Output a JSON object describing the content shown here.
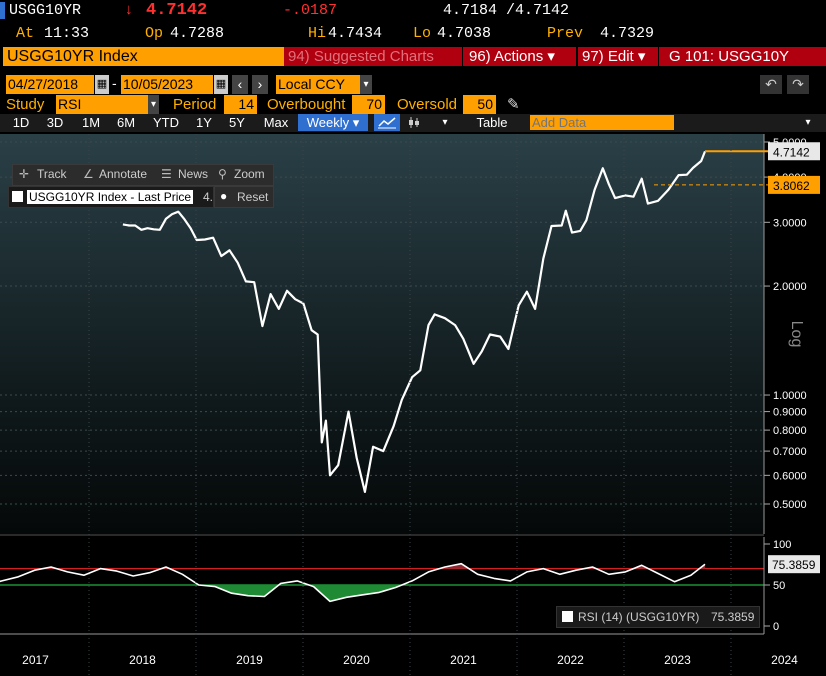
{
  "quote": {
    "ticker": "USGG10YR",
    "arrow": "↓",
    "last": "4.7142",
    "change": "-.0187",
    "bid_ask": "4.7184 /4.7142",
    "at_label": "At",
    "at_time": "11:33",
    "op_label": "Op",
    "open": "4.7288",
    "hi_label": "Hi",
    "high": "4.7434",
    "lo_label": "Lo",
    "low": "4.7038",
    "prev_label": "Prev",
    "prev": "4.7329"
  },
  "toolbar": {
    "security": "USGG10YR Index",
    "suggested": "94) Suggested Charts",
    "actions": "96) Actions ▾",
    "edit": "97) Edit ▾",
    "function": "G 101: USGG10Y"
  },
  "dates": {
    "start": "04/27/2018",
    "end": "10/05/2023",
    "currency": "Local CCY",
    "sep": "-"
  },
  "study": {
    "label": "Study",
    "name": "RSI",
    "period_label": "Period",
    "period": "14",
    "overbought_label": "Overbought",
    "overbought": "70",
    "oversold_label": "Oversold",
    "oversold": "50"
  },
  "tabs": [
    "1D",
    "3D",
    "1M",
    "6M",
    "YTD",
    "1Y",
    "5Y",
    "Max"
  ],
  "frequency": "Weekly ▾",
  "table_label": "Table",
  "add_data_placeholder": "Add Data",
  "chart_tools": {
    "track": "Track",
    "annotate": "Annotate",
    "news": "News",
    "zoom": "Zoom",
    "reset": "Reset",
    "legend": "USGG10YR Index - Last Price",
    "legend_value": "4."
  },
  "accent_colors": {
    "orange": "#ff9f00",
    "red": "#b0000f",
    "selected_tab": "#2f6fd0",
    "rsi_over": "#8a2a35",
    "rsi_under": "#1e8a33"
  },
  "chart_data": [
    {
      "type": "line",
      "scale": "log",
      "x_labels": [
        "2017",
        "2018",
        "2019",
        "2020",
        "2021",
        "2022",
        "2023",
        "2024"
      ],
      "y_ticks": [
        0.5,
        0.6,
        0.7,
        0.8,
        0.9,
        1.0,
        2.0,
        3.0,
        4.0,
        5.0
      ],
      "y_tick_labels": [
        "0.5000",
        "0.6000",
        "0.7000",
        "0.8000",
        "0.9000",
        "1.0000",
        "2.0000",
        "3.0000",
        "4.0000",
        "5.0000"
      ],
      "axis_label": "Log",
      "last_value": "4.7142",
      "ref_value": "3.8062",
      "series": [
        {
          "x": [
            "2018-04-27",
            "2018-05-18",
            "2018-06-08",
            "2018-06-29",
            "2018-07-20",
            "2018-08-10",
            "2018-08-31",
            "2018-09-21",
            "2018-10-12",
            "2018-11-02",
            "2018-11-23",
            "2018-12-14",
            "2019-01-04",
            "2019-02-01",
            "2019-03-01",
            "2019-03-29",
            "2019-04-26",
            "2019-05-24",
            "2019-06-21",
            "2019-07-19",
            "2019-08-16",
            "2019-09-13",
            "2019-10-11",
            "2019-11-08",
            "2019-12-06",
            "2020-01-03",
            "2020-01-31",
            "2020-02-21",
            "2020-03-06",
            "2020-03-20",
            "2020-04-03",
            "2020-05-01",
            "2020-06-05",
            "2020-07-03",
            "2020-07-31",
            "2020-08-28",
            "2020-10-02",
            "2020-11-06",
            "2020-12-04",
            "2021-01-08",
            "2021-02-05",
            "2021-03-05",
            "2021-03-26",
            "2021-04-30",
            "2021-06-04",
            "2021-07-02",
            "2021-08-06",
            "2021-09-03",
            "2021-10-01",
            "2021-11-05",
            "2021-12-03",
            "2022-01-07",
            "2022-02-04",
            "2022-03-04",
            "2022-04-01",
            "2022-04-29",
            "2022-06-03",
            "2022-06-17",
            "2022-07-08",
            "2022-08-05",
            "2022-08-26",
            "2022-09-23",
            "2022-10-21",
            "2022-11-11",
            "2022-12-02",
            "2023-01-06",
            "2023-02-03",
            "2023-03-03",
            "2023-03-24",
            "2023-04-28",
            "2023-06-02",
            "2023-07-07",
            "2023-08-04",
            "2023-08-25",
            "2023-09-22",
            "2023-10-05"
          ],
          "y": [
            2.96,
            2.94,
            2.94,
            2.86,
            2.89,
            2.87,
            2.86,
            3.07,
            3.16,
            3.21,
            3.06,
            2.89,
            2.68,
            2.69,
            2.72,
            2.42,
            2.51,
            2.32,
            2.06,
            2.05,
            1.55,
            1.9,
            1.73,
            1.94,
            1.84,
            1.79,
            1.51,
            1.47,
            0.74,
            0.85,
            0.6,
            0.64,
            0.9,
            0.67,
            0.54,
            0.72,
            0.7,
            0.82,
            0.97,
            1.12,
            1.17,
            1.56,
            1.67,
            1.63,
            1.56,
            1.43,
            1.22,
            1.32,
            1.47,
            1.45,
            1.34,
            1.77,
            1.93,
            1.73,
            2.38,
            2.93,
            2.94,
            3.23,
            2.81,
            2.84,
            3.04,
            3.69,
            4.23,
            3.82,
            3.5,
            3.56,
            3.53,
            3.96,
            3.38,
            3.44,
            3.69,
            4.05,
            4.06,
            4.24,
            4.43,
            4.71
          ]
        }
      ]
    },
    {
      "type": "line",
      "title": "RSI (14) (USGG10YR)",
      "last_value": "75.3859",
      "y_ticks": [
        0,
        50,
        100
      ],
      "overbought": 70,
      "oversold": 50,
      "series": [
        {
          "name": "RSI (14) (USGG10YR)",
          "x": [
            "2016-11-18",
            "2017-01-13",
            "2017-03-10",
            "2017-05-05",
            "2017-06-30",
            "2017-08-25",
            "2017-10-20",
            "2017-12-15",
            "2018-02-09",
            "2018-04-06",
            "2018-06-01",
            "2018-07-27",
            "2018-09-21",
            "2018-11-16",
            "2019-01-11",
            "2019-03-08",
            "2019-05-03",
            "2019-06-28",
            "2019-08-23",
            "2019-10-18",
            "2019-12-13",
            "2020-02-07",
            "2020-04-03",
            "2020-05-29",
            "2020-07-24",
            "2020-09-18",
            "2020-11-13",
            "2021-01-08",
            "2021-03-05",
            "2021-04-30",
            "2021-06-25",
            "2021-08-20",
            "2021-10-15",
            "2021-12-10",
            "2022-02-04",
            "2022-04-01",
            "2022-05-27",
            "2022-07-22",
            "2022-09-16",
            "2022-11-11",
            "2023-01-06",
            "2023-03-03",
            "2023-04-28",
            "2023-06-23",
            "2023-08-18",
            "2023-10-05"
          ],
          "values": [
            45,
            50,
            55,
            60,
            68,
            72,
            66,
            62,
            70,
            67,
            61,
            65,
            72,
            63,
            50,
            48,
            40,
            37,
            36,
            52,
            55,
            48,
            30,
            35,
            38,
            41,
            47,
            55,
            66,
            72,
            76,
            63,
            58,
            55,
            66,
            70,
            63,
            68,
            72,
            63,
            66,
            74,
            64,
            54,
            62,
            75.3859
          ]
        }
      ]
    }
  ]
}
